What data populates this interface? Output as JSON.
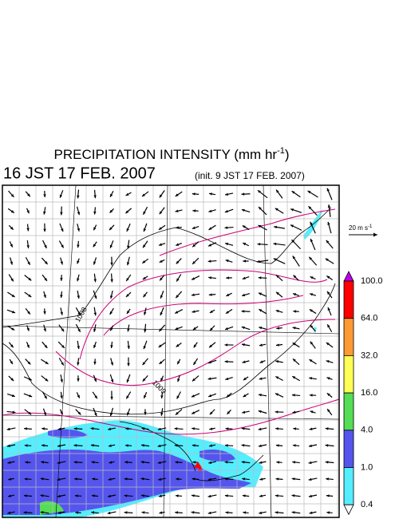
{
  "header": {
    "title": {
      "text": "PRECIPITATION INTENSITY (mm hr",
      "sup": "-1",
      "close": ")"
    },
    "valid_time": "16 JST 17 FEB. 2007",
    "init_time": "(init. 9 JST 17 FEB. 2007)"
  },
  "wind_scale": {
    "text": "20 m s",
    "sup": "-1"
  },
  "isobar_labels": [
    "1008",
    "1009"
  ],
  "colorbar": [
    {
      "label": "100.0",
      "color": "#ff0000"
    },
    {
      "label": "64.0",
      "color": "#ff9933"
    },
    {
      "label": "32.0",
      "color": "#ffff55"
    },
    {
      "label": "16.0",
      "color": "#55dd55"
    },
    {
      "label": "4.0",
      "color": "#5555ee"
    },
    {
      "label": "1.0",
      "color": "#55eeff"
    },
    {
      "label": "0.4",
      "color": "#ffffff"
    }
  ],
  "colorbar_top_color": "#bb00ee"
}
